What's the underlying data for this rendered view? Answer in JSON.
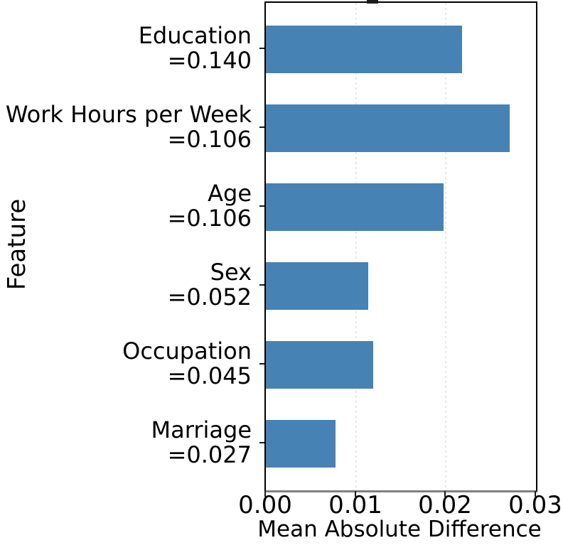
{
  "chart_data": {
    "type": "bar",
    "orientation": "horizontal",
    "title": "",
    "xlabel": "Mean Absolute Difference",
    "ylabel": "Feature",
    "categories": [
      "Education",
      "Work Hours per Week",
      "Age",
      "Sex",
      "Occupation",
      "Marriage"
    ],
    "category_sublabels": [
      "=0.140",
      "=0.106",
      "=0.106",
      "=0.052",
      "=0.045",
      "=0.027"
    ],
    "values": [
      0.0218,
      0.0271,
      0.0197,
      0.0114,
      0.0119,
      0.0077
    ],
    "xlim": [
      0,
      0.03
    ],
    "x_ticks": [
      0,
      0.01,
      0.02,
      0.03
    ],
    "x_tick_labels": [
      "0.00",
      "0.01",
      "0.02",
      "0.03"
    ],
    "legend": "none",
    "grid": "vertical dotted gridlines at x ticks",
    "bar_color": "#4682b4",
    "spine_color": "#000000",
    "baseline_color": "#808080",
    "tick_color": "#1a1a1a"
  }
}
